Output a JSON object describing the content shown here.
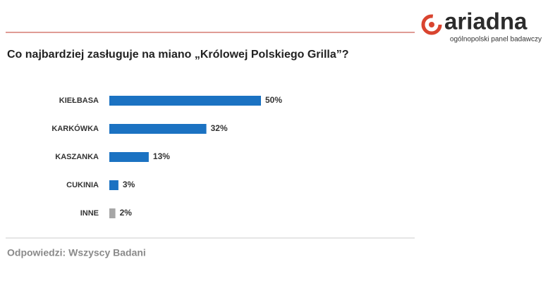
{
  "chart_data": {
    "type": "bar",
    "orientation": "horizontal",
    "title": "Co najbardziej zasługuje na miano „Królowej Polskiego Grilla”?",
    "categories": [
      "KIEŁBASA",
      "KARKÓWKA",
      "KASZANKA",
      "CUKINIA",
      "INNE"
    ],
    "values": [
      50,
      32,
      13,
      3,
      2
    ],
    "value_labels": [
      "50%",
      "32%",
      "13%",
      "3%",
      "2%"
    ],
    "colors": [
      "#1b72c2",
      "#1b72c2",
      "#1b72c2",
      "#1b72c2",
      "#a6a6a6"
    ],
    "footnote": "Odpowiedzi: Wszyscy Badani"
  },
  "logo": {
    "name": "ariadna",
    "tagline": "ogólnopolski panel badawczy"
  }
}
